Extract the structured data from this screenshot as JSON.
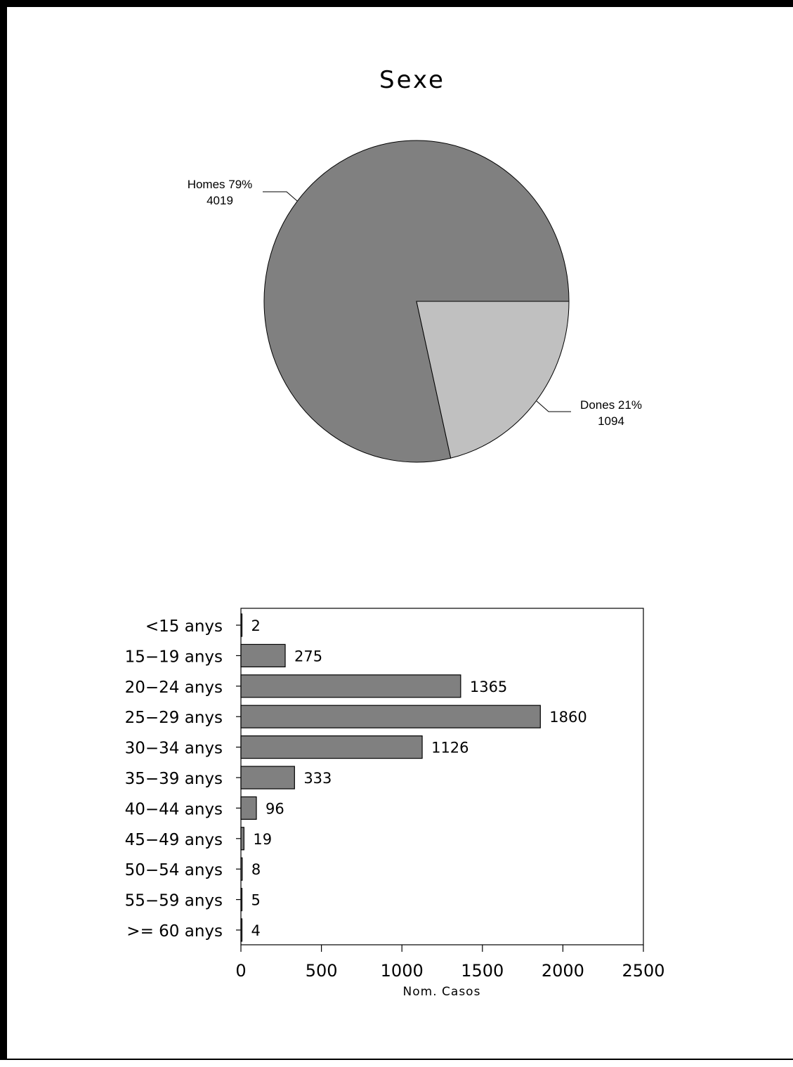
{
  "chart_data": [
    {
      "type": "pie",
      "title": "Sexe",
      "slices": [
        {
          "label": "Homes",
          "percent_label": "79%",
          "value": 4019,
          "value_label": "4019",
          "color": "#808080"
        },
        {
          "label": "Dones",
          "percent_label": "21%",
          "value": 1094,
          "value_label": "1094",
          "color": "#c0c0c0"
        }
      ]
    },
    {
      "type": "bar",
      "orientation": "horizontal",
      "categories": [
        "<15 anys",
        "15−19 anys",
        "20−24 anys",
        "25−29 anys",
        "30−34 anys",
        "35−39 anys",
        "40−44 anys",
        "45−49 anys",
        "50−54 anys",
        "55−59 anys",
        ">= 60 anys"
      ],
      "values": [
        2,
        275,
        1365,
        1860,
        1126,
        333,
        96,
        19,
        8,
        5,
        4
      ],
      "xlabel": "Nom. Casos",
      "ylabel": "",
      "xlim": [
        0,
        2500
      ],
      "xticks": [
        0,
        500,
        1000,
        1500,
        2000,
        2500
      ],
      "bar_color": "#808080",
      "grid": false
    }
  ]
}
